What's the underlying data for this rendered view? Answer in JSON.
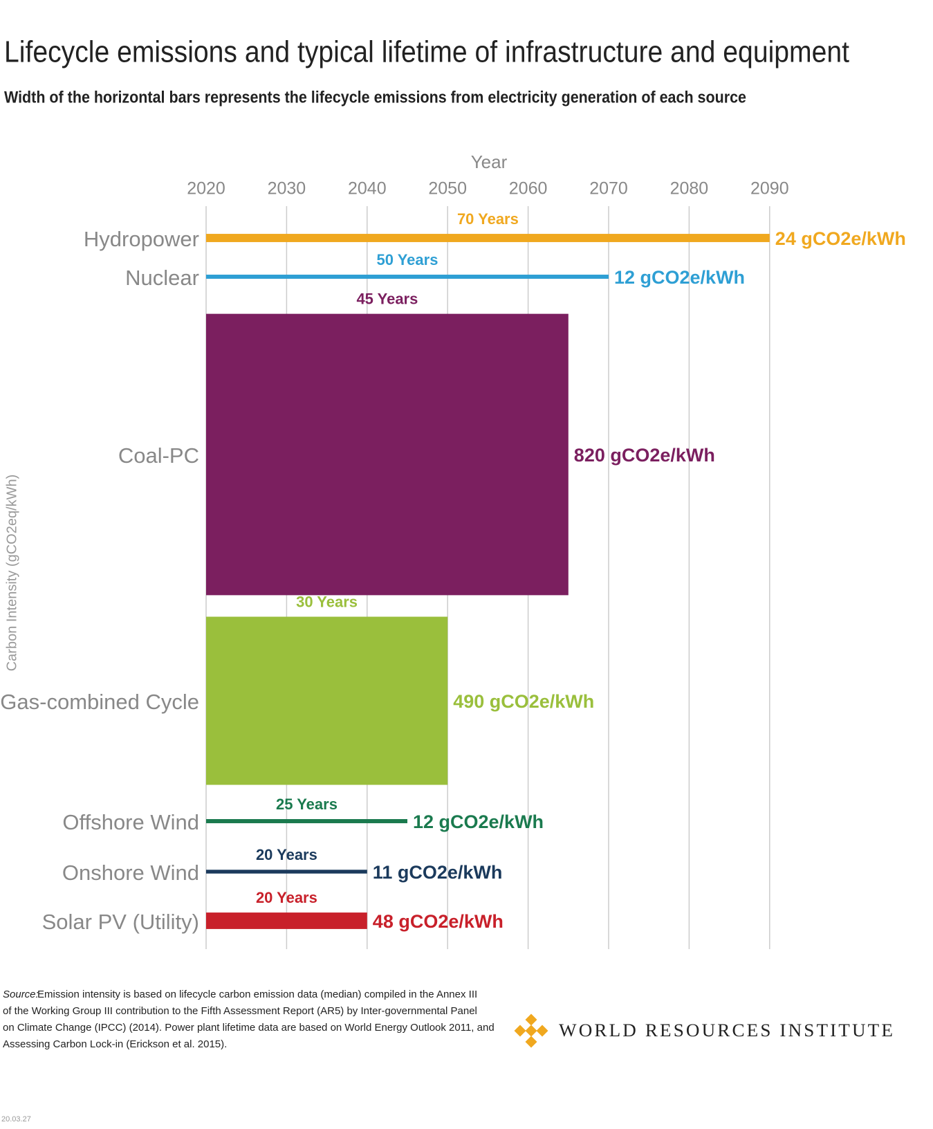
{
  "chart_data": {
    "type": "bar",
    "title": "Lifecycle emissions and typical lifetime of infrastructure and equipment",
    "subtitle": "Width of the horizontal bars represents the lifecycle emissions from electricity generation of each source",
    "x_label": "Year",
    "y_label": "Carbon Intensity (gCO2eq/kWh)",
    "categories": [
      "Hydropower",
      "Nuclear",
      "Coal-PC",
      "Gas-combined Cycle",
      "Offshore Wind",
      "Onshore Wind",
      "Solar PV (Utility)"
    ],
    "values": [
      70,
      50,
      45,
      30,
      25,
      20,
      20
    ],
    "value_labels": [
      "70 Years",
      "50 Years",
      "45 Years",
      "30 Years",
      "25 Years",
      "20 Years",
      "20 Years"
    ],
    "widths": [
      24,
      12,
      820,
      490,
      12,
      11,
      48
    ],
    "width_labels": [
      "24 gCO2e/kWh",
      "12 gCO2e/kWh",
      "820 gCO2e/kWh",
      "490 gCO2e/kWh",
      "12 gCO2e/kWh",
      "11 gCO2e/kWh",
      "48 gCO2e/kWh"
    ],
    "colors": [
      "#f0a81f",
      "#2e9fd4",
      "#7b1f5f",
      "#9abf3c",
      "#1a7a4e",
      "#1b3a5c",
      "#c8202a"
    ],
    "xlim": [
      2020,
      2100
    ],
    "xticks": [
      2020,
      2030,
      2040,
      2050,
      2060,
      2070,
      2080,
      2090
    ],
    "grid": true,
    "source_label": "Source:",
    "source_lines": [
      "Emission intensity is based on lifecycle carbon emission data (median) compiled in the Annex III",
      "of the Working Group III contribution to the Fifth Assessment Report (AR5) by Inter-governmental Panel",
      "on Climate Change (IPCC) (2014). Power plant lifetime data are based on World Energy Outlook 2011, and",
      "Assessing Carbon Lock-in (Erickson et al. 2015)."
    ],
    "logo_text": "WORLD RESOURCES INSTITUTE",
    "date": "20.03.27"
  }
}
